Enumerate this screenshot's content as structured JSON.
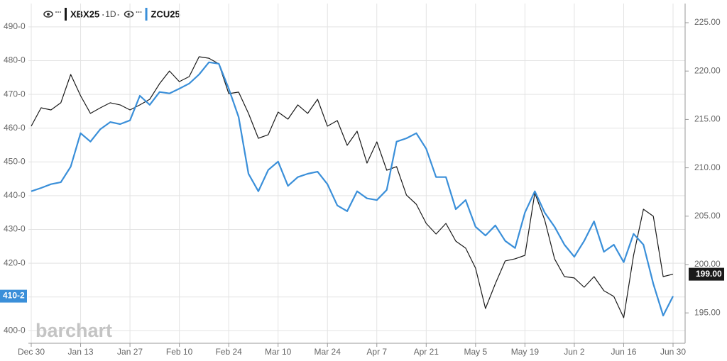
{
  "chart_data": {
    "type": "line",
    "interval": "1D",
    "watermark": "barchart",
    "grid": true,
    "categories": [
      "Dec 30",
      null,
      null,
      null,
      null,
      "Jan 13",
      null,
      null,
      null,
      null,
      "Jan 27",
      null,
      null,
      null,
      null,
      "Feb 10",
      null,
      null,
      null,
      null,
      "Feb 24",
      null,
      null,
      null,
      null,
      "Mar 10",
      null,
      null,
      null,
      null,
      "Mar 24",
      null,
      null,
      null,
      null,
      "Apr 7",
      null,
      null,
      null,
      null,
      "Apr 21",
      null,
      null,
      null,
      null,
      "May 5",
      null,
      null,
      null,
      null,
      "May 19",
      null,
      null,
      null,
      null,
      "Jun 2",
      null,
      null,
      null,
      null,
      "Jun 16",
      null,
      null,
      null,
      null,
      "Jun 30"
    ],
    "ylim": [
      396.3,
      496.9
    ],
    "yticks": [
      {
        "value": 400,
        "label": "400-0"
      },
      {
        "value": 410,
        "label": "410-0"
      },
      {
        "value": 420,
        "label": "420-0"
      },
      {
        "value": 430,
        "label": "430-0"
      },
      {
        "value": 440,
        "label": "440-0"
      },
      {
        "value": 450,
        "label": "450-0"
      },
      {
        "value": 460,
        "label": "460-0"
      },
      {
        "value": 470,
        "label": "470-0"
      },
      {
        "value": 480,
        "label": "480-0"
      },
      {
        "value": 490,
        "label": "490-0"
      }
    ],
    "y2lim": [
      191.86,
      226.98
    ],
    "y2ticks": [
      {
        "value": 195,
        "label": "195.00"
      },
      {
        "value": 200,
        "label": "200.00"
      },
      {
        "value": 205,
        "label": "205.00"
      },
      {
        "value": 210,
        "label": "210.00"
      },
      {
        "value": 215,
        "label": "215.00"
      },
      {
        "value": 220,
        "label": "220.00"
      },
      {
        "value": 225,
        "label": "225.00"
      }
    ],
    "series": [
      {
        "name": "XBX25",
        "color": "#1a1a1a",
        "axis": "y2",
        "last_value_label": "199.00",
        "values": [
          214.3,
          216.2,
          215.98,
          216.72,
          219.65,
          217.45,
          215.62,
          216.2,
          216.72,
          216.5,
          215.98,
          216.5,
          217.08,
          218.7,
          220.01,
          218.91,
          219.43,
          221.48,
          221.33,
          220.75,
          217.67,
          217.82,
          215.62,
          213.05,
          213.42,
          215.76,
          215.03,
          216.5,
          215.62,
          217.08,
          214.3,
          214.88,
          212.32,
          213.78,
          210.48,
          212.68,
          209.75,
          210.12,
          207.18,
          206.23,
          204.25,
          203.15,
          204.25,
          202.42,
          201.69,
          199.63,
          195.45,
          198.02,
          200.37,
          200.59,
          200.95,
          207.4,
          204.62,
          200.59,
          198.75,
          198.61,
          197.65,
          198.75,
          197.29,
          196.7,
          194.5,
          200.95,
          205.72,
          204.99,
          198.75,
          199.0
        ]
      },
      {
        "name": "ZCU25",
        "color": "#3a8fd9",
        "axis": "y",
        "last_value_label": "410-2",
        "values": [
          441.3,
          442.3,
          443.4,
          444.0,
          448.6,
          458.5,
          456.0,
          459.7,
          461.8,
          461.2,
          462.3,
          469.6,
          466.9,
          470.7,
          470.3,
          471.7,
          473.2,
          475.9,
          479.5,
          479.1,
          471.7,
          463.3,
          446.5,
          441.3,
          447.6,
          450.1,
          442.9,
          445.5,
          446.5,
          447.1,
          443.4,
          437.1,
          435.4,
          441.3,
          439.2,
          438.7,
          441.7,
          456.0,
          457.0,
          458.5,
          453.9,
          445.5,
          445.5,
          436.0,
          438.7,
          430.8,
          428.2,
          431.2,
          426.6,
          424.5,
          435.0,
          441.3,
          435.0,
          430.8,
          425.5,
          421.9,
          426.6,
          432.4,
          423.4,
          425.5,
          420.3,
          428.7,
          425.5,
          413.9,
          404.5,
          410.25
        ]
      }
    ]
  }
}
